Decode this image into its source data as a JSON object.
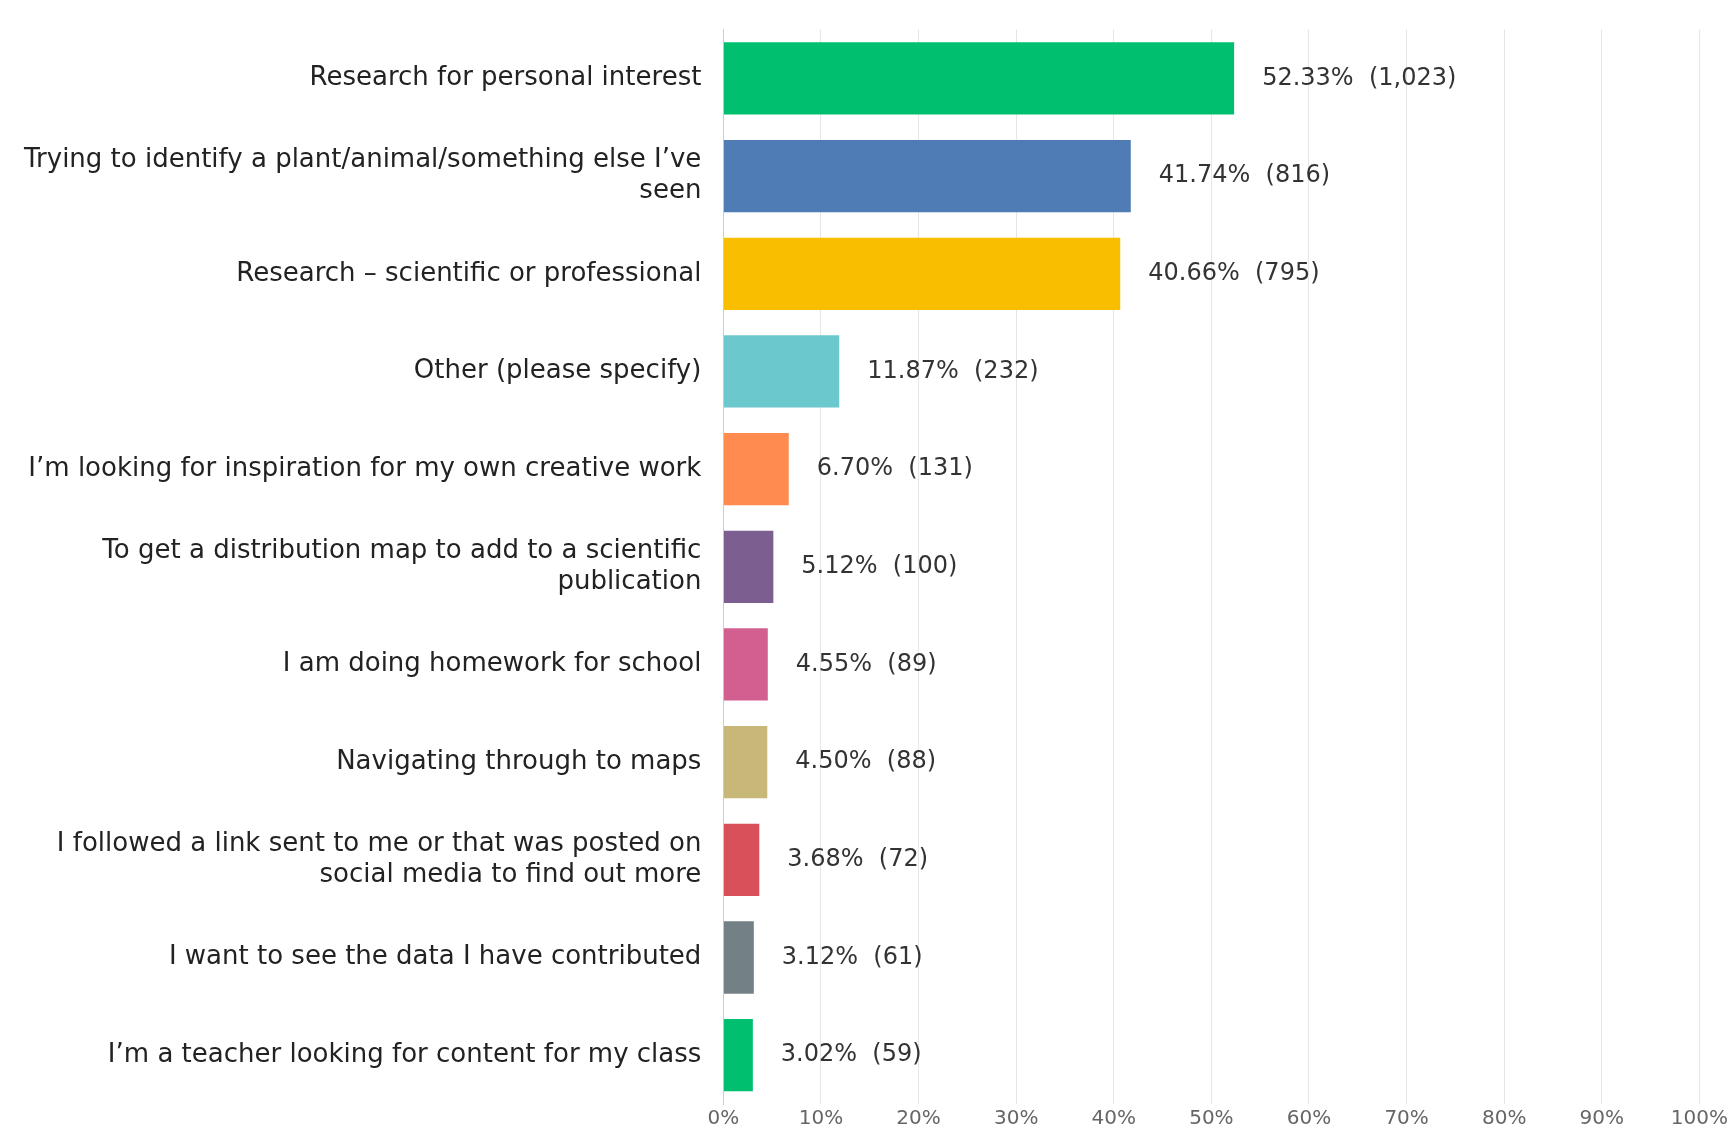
{
  "chart_data": {
    "type": "bar",
    "orientation": "horizontal",
    "categories": [
      "Research for personal interest",
      "Trying to identify a plant/animal/something else I’ve seen",
      "Research – scientific or professional",
      "Other (please specify)",
      "I’m looking for inspiration for my own creative work",
      "To get a distribution map to add to a scientific publication",
      "I am doing homework for school",
      "Navigating through to maps",
      "I followed a link sent to me or that was posted on social media to find out more",
      "I want to see the data I have contributed",
      "I’m a teacher looking for content for my class"
    ],
    "values": [
      52.33,
      41.74,
      40.66,
      11.87,
      6.7,
      5.12,
      4.55,
      4.5,
      3.68,
      3.12,
      3.02
    ],
    "colors": [
      "#00bf6f",
      "#507cb6",
      "#f9be00",
      "#6bc8cd",
      "#ff8b4f",
      "#7d5e90",
      "#d25f90",
      "#c7b879",
      "#d9505a",
      "#738086",
      "#00bf6f"
    ],
    "value_labels": [
      "52.33%  (1,023)",
      "41.74%  (816)",
      "40.66%  (795)",
      "11.87%  (232)",
      "6.70%  (131)",
      "5.12%  (100)",
      "4.55%  (89)",
      "4.50%  (88)",
      "3.68%  (72)",
      "3.12%  (61)",
      "3.02%  (59)"
    ],
    "xlim": [
      0,
      100
    ],
    "xticks": [
      {
        "value": 0,
        "label": "0%"
      },
      {
        "value": 10,
        "label": "10%"
      },
      {
        "value": 20,
        "label": "20%"
      },
      {
        "value": 30,
        "label": "30%"
      },
      {
        "value": 40,
        "label": "40%"
      },
      {
        "value": 50,
        "label": "50%"
      },
      {
        "value": 60,
        "label": "60%"
      },
      {
        "value": 70,
        "label": "70%"
      },
      {
        "value": 80,
        "label": "80%"
      },
      {
        "value": 90,
        "label": "90%"
      },
      {
        "value": 100,
        "label": "100%"
      }
    ],
    "grid": "x"
  }
}
